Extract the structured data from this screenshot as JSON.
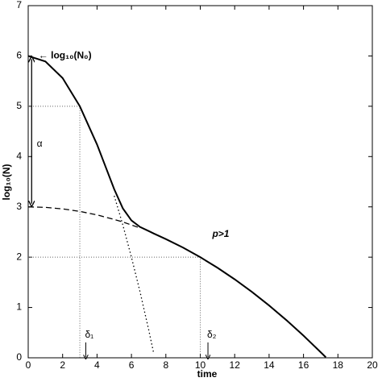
{
  "chart_data": {
    "type": "line",
    "xlabel": "time",
    "ylabel": "log₁₀(N)",
    "xlim": [
      0,
      20
    ],
    "ylim": [
      0,
      7
    ],
    "xticks": [
      0,
      2,
      4,
      6,
      8,
      10,
      12,
      14,
      16,
      18,
      20
    ],
    "yticks": [
      0,
      1,
      2,
      3,
      4,
      5,
      6,
      7
    ],
    "x": [
      0,
      1,
      2,
      3,
      4,
      5,
      5.5,
      6,
      6.5,
      7,
      7.3,
      8,
      9,
      10,
      11,
      12,
      13,
      14,
      15,
      16,
      17,
      17.3
    ],
    "series": [
      {
        "color": "#000000",
        "style": "solid",
        "values": [
          6,
          5.89,
          5.56,
          5.0,
          4.24,
          3.35,
          2.97,
          2.73,
          2.6,
          2.52,
          2.47,
          2.36,
          2.19,
          2.0,
          1.79,
          1.56,
          1.31,
          1.04,
          0.75,
          0.44,
          0.11,
          0.01
        ]
      },
      {
        "color": "#000000",
        "style": "dashed",
        "values": [
          3,
          2.99,
          2.96,
          2.91,
          2.84,
          2.75,
          2.7,
          2.64,
          2.58,
          null,
          null,
          null,
          null,
          null,
          null,
          null,
          null,
          null,
          null,
          null,
          null,
          null
        ]
      },
      {
        "color": "#000000",
        "style": "dotted",
        "values": [
          null,
          null,
          null,
          null,
          null,
          3.22,
          2.64,
          2.0,
          1.31,
          0.56,
          0.08,
          null,
          null,
          null,
          null,
          null,
          null,
          null,
          null,
          null,
          null,
          null
        ]
      }
    ],
    "guides": [
      {
        "x": 3,
        "y": 5
      },
      {
        "x": 10,
        "y": 2
      }
    ],
    "annotations": [
      {
        "text": "← log₁₀(N₀)",
        "x": 0.6,
        "y": 6
      },
      {
        "text": "α",
        "x": 0.5,
        "y": 4.25
      },
      {
        "text": "p>1",
        "x": 10.7,
        "y": 2.45
      },
      {
        "text": "δ₁",
        "x": 3.3,
        "y": 0.45
      },
      {
        "text": "δ₂",
        "x": 10.4,
        "y": 0.45
      }
    ],
    "alpha_range": [
      6,
      3
    ]
  }
}
